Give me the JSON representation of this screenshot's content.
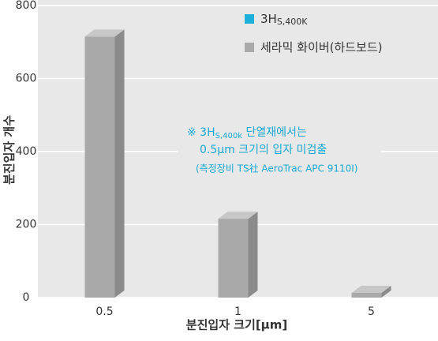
{
  "chart_data": {
    "type": "bar",
    "categories": [
      "0.5",
      "1",
      "5"
    ],
    "series": [
      {
        "name": "3H",
        "name_subscript": "S,400K",
        "color": "#1ab0d8",
        "values": [
          null,
          null,
          null
        ]
      },
      {
        "name": "세라믹 화이버(하드보드)",
        "color": "#a9a9a9",
        "values": [
          715,
          216,
          13
        ]
      }
    ],
    "ylim": [
      0,
      800
    ],
    "yticks": [
      0,
      200,
      400,
      600,
      800
    ],
    "grid": true,
    "ylabel": "분진입자 개수",
    "xlabel": "분진입자 크기[μm]",
    "annotation": {
      "prefix": "※ 3H",
      "subscript": "S,400k",
      "suffix": " 단열재에서는",
      "line2": "0.5μm 크기의 입자 미검출",
      "line3": "(측정장비 TS社 AeroTrac APC 9110I)"
    }
  }
}
